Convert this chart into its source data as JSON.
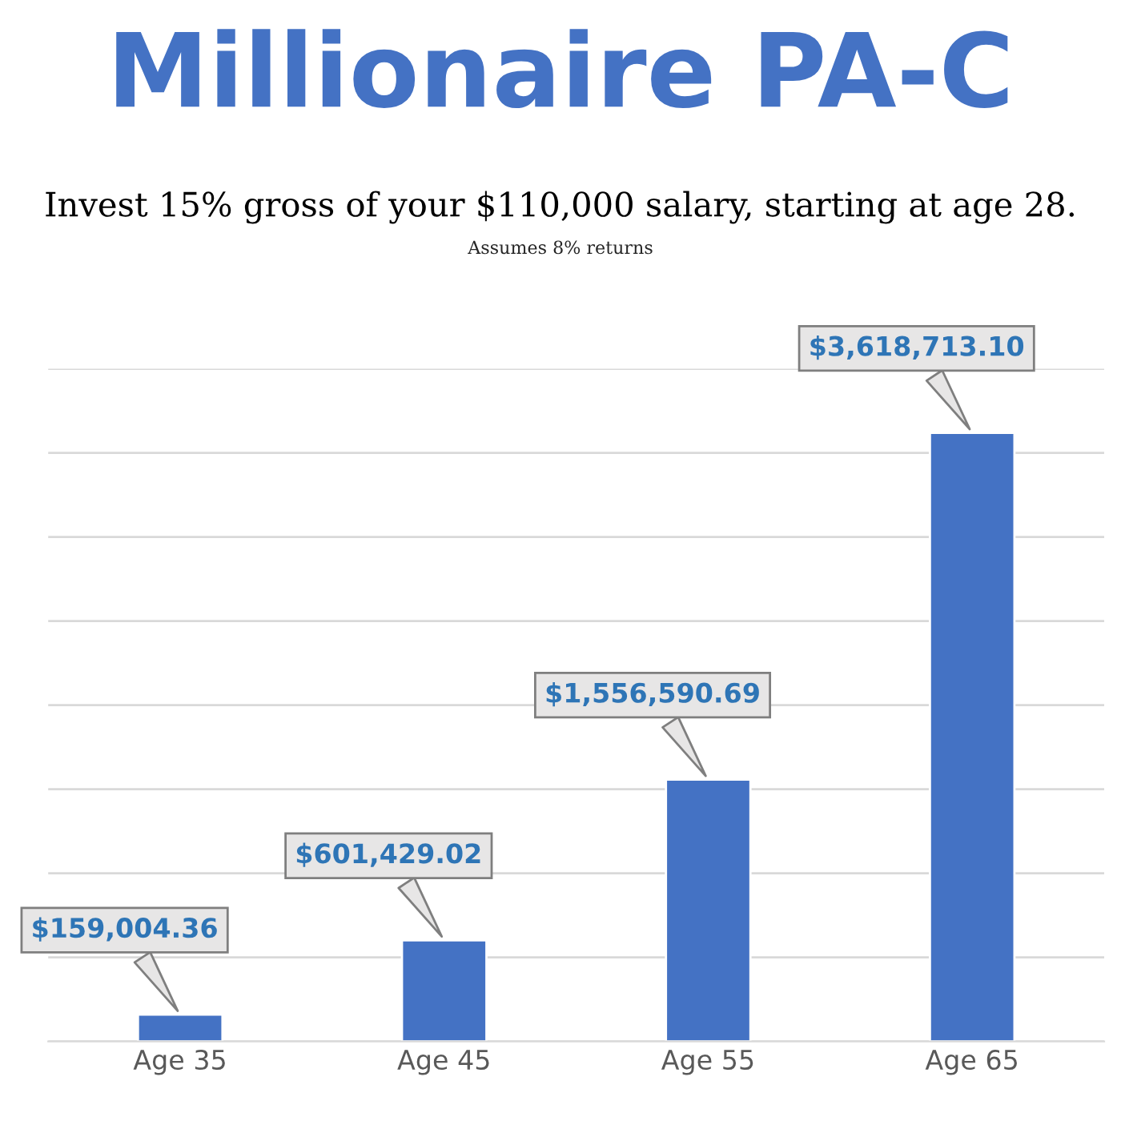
{
  "chart_data": {
    "type": "bar",
    "title": "Millionaire PA-C",
    "subtitle": "Invest 15% gross of your $110,000 salary, starting at age 28.",
    "annotations": [
      "Assumes 8% returns"
    ],
    "categories": [
      "Age 35",
      "Age 45",
      "Age 55",
      "Age 65"
    ],
    "values": [
      159004.36,
      601429.02,
      1556590.69,
      3618713.1
    ],
    "value_labels": [
      "$159,004.36",
      "$601,429.02",
      "$1,556,590.69",
      "$3,618,713.10"
    ],
    "color": "#4472c4",
    "ylim": [
      0,
      4000000
    ],
    "yticks": [
      {
        "value": 0,
        "label": null
      },
      {
        "value": 500000,
        "label": null
      },
      {
        "value": 1000000,
        "label": null
      },
      {
        "value": 1500000,
        "label": null
      },
      {
        "value": 2000000,
        "label": null
      },
      {
        "value": 2500000,
        "label": null
      },
      {
        "value": 3000000,
        "label": null
      },
      {
        "value": 3500000,
        "label": null
      },
      {
        "value": 4000000,
        "label": null
      }
    ],
    "grid": "y",
    "tick_labels": "x",
    "legend": false
  }
}
